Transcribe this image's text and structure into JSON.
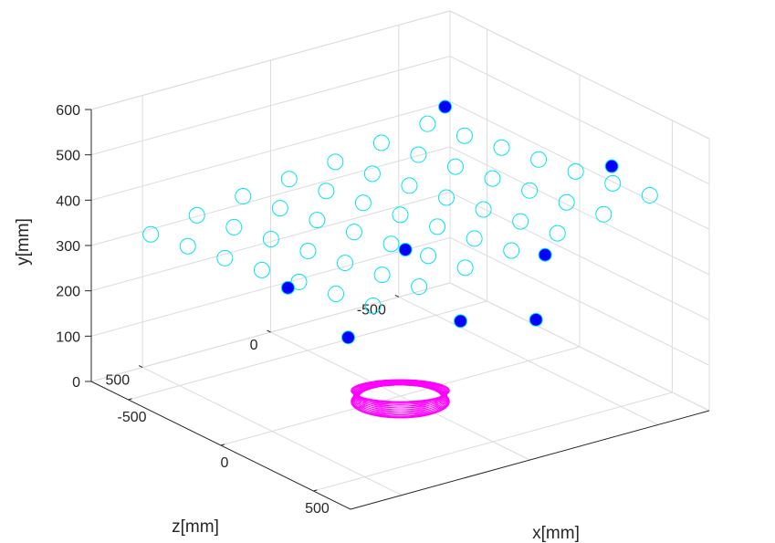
{
  "chart_data": {
    "type": "scatter",
    "projection": "3d",
    "title": "",
    "xlabel": "x[mm]",
    "ylabel": "y[mm]",
    "zlabel": "z[mm]",
    "xlim": [
      -700,
      700
    ],
    "ylim": [
      0,
      600
    ],
    "zlim": [
      -700,
      700
    ],
    "xticks": [
      -500,
      0,
      500
    ],
    "yticks": [
      0,
      100,
      200,
      300,
      400,
      500,
      600
    ],
    "zticks": [
      -500,
      0,
      500
    ],
    "grid": true,
    "colors": {
      "axes": "#262626",
      "grid": "#dcdcdc",
      "marker_empty": "#00e5ee",
      "marker_filled": "#0000ff",
      "ring": "#ff00ff"
    },
    "series": [
      {
        "marker": "open-circle",
        "points": [
          {
            "x": 0,
            "y": 400,
            "z": 0
          },
          {
            "x": 0,
            "y": 390,
            "z": 180
          },
          {
            "x": 0,
            "y": 376,
            "z": 360
          },
          {
            "x": 0,
            "y": 362,
            "z": 540
          },
          {
            "x": 200,
            "y": 414,
            "z": 0
          },
          {
            "x": 400,
            "y": 428,
            "z": 0
          },
          {
            "x": 600,
            "y": 442,
            "z": 0
          },
          {
            "x": -200,
            "y": 386,
            "z": 0
          },
          {
            "x": -400,
            "y": 372,
            "z": 0
          },
          {
            "x": -600,
            "y": 358,
            "z": 0
          },
          {
            "x": 200,
            "y": 404,
            "z": 180
          },
          {
            "x": 400,
            "y": 418,
            "z": 180
          },
          {
            "x": 600,
            "y": 432,
            "z": 180
          },
          {
            "x": -200,
            "y": 376,
            "z": 180
          },
          {
            "x": -400,
            "y": 362,
            "z": 180
          },
          {
            "x": -600,
            "y": 348,
            "z": 180
          },
          {
            "x": 200,
            "y": 390,
            "z": 360
          },
          {
            "x": 400,
            "y": 404,
            "z": 360
          },
          {
            "x": 600,
            "y": 418,
            "z": 360
          },
          {
            "x": -200,
            "y": 362,
            "z": 360
          },
          {
            "x": -400,
            "y": 348,
            "z": 360
          },
          {
            "x": -600,
            "y": 334,
            "z": 360
          },
          {
            "x": 200,
            "y": 376,
            "z": 540
          },
          {
            "x": 400,
            "y": 390,
            "z": 540
          },
          {
            "x": 600,
            "y": 404,
            "z": 540
          },
          {
            "x": -200,
            "y": 348,
            "z": 540
          },
          {
            "x": -400,
            "y": 334,
            "z": 540
          },
          {
            "x": -600,
            "y": 320,
            "z": 540
          },
          {
            "x": 0,
            "y": 410,
            "z": -180
          },
          {
            "x": 0,
            "y": 424,
            "z": -360
          },
          {
            "x": 0,
            "y": 438,
            "z": -540
          },
          {
            "x": 200,
            "y": 424,
            "z": -180
          },
          {
            "x": 400,
            "y": 438,
            "z": -180
          },
          {
            "x": 600,
            "y": 452,
            "z": -180
          },
          {
            "x": -200,
            "y": 396,
            "z": -180
          },
          {
            "x": -400,
            "y": 382,
            "z": -180
          },
          {
            "x": -600,
            "y": 368,
            "z": -180
          },
          {
            "x": 200,
            "y": 438,
            "z": -360
          },
          {
            "x": 400,
            "y": 452,
            "z": -360
          },
          {
            "x": 600,
            "y": 466,
            "z": -360
          },
          {
            "x": -200,
            "y": 410,
            "z": -360
          },
          {
            "x": -400,
            "y": 396,
            "z": -360
          },
          {
            "x": -600,
            "y": 382,
            "z": -360
          },
          {
            "x": 200,
            "y": 452,
            "z": -540
          },
          {
            "x": 400,
            "y": 466,
            "z": -540
          },
          {
            "x": 600,
            "y": 480,
            "z": -540
          },
          {
            "x": -200,
            "y": 424,
            "z": -540
          },
          {
            "x": -400,
            "y": 410,
            "z": -540
          },
          {
            "x": -600,
            "y": 396,
            "z": -540
          }
        ]
      },
      {
        "marker": "filled-circle",
        "points": [
          {
            "x": -450,
            "y": 470,
            "z": -500
          },
          {
            "x": 0,
            "y": 320,
            "z": -20
          },
          {
            "x": -150,
            "y": 260,
            "z": 330
          },
          {
            "x": 300,
            "y": 255,
            "z": 420
          },
          {
            "x": 450,
            "y": 520,
            "z": -500
          },
          {
            "x": 450,
            "y": 365,
            "z": -240
          },
          {
            "x": 450,
            "y": 270,
            "z": 90
          },
          {
            "x": 650,
            "y": 290,
            "z": -60
          }
        ]
      }
    ],
    "ring": {
      "center_x": 0,
      "center_y": 0,
      "center_z": 0,
      "radius": 150,
      "tube_radius": 20
    }
  }
}
